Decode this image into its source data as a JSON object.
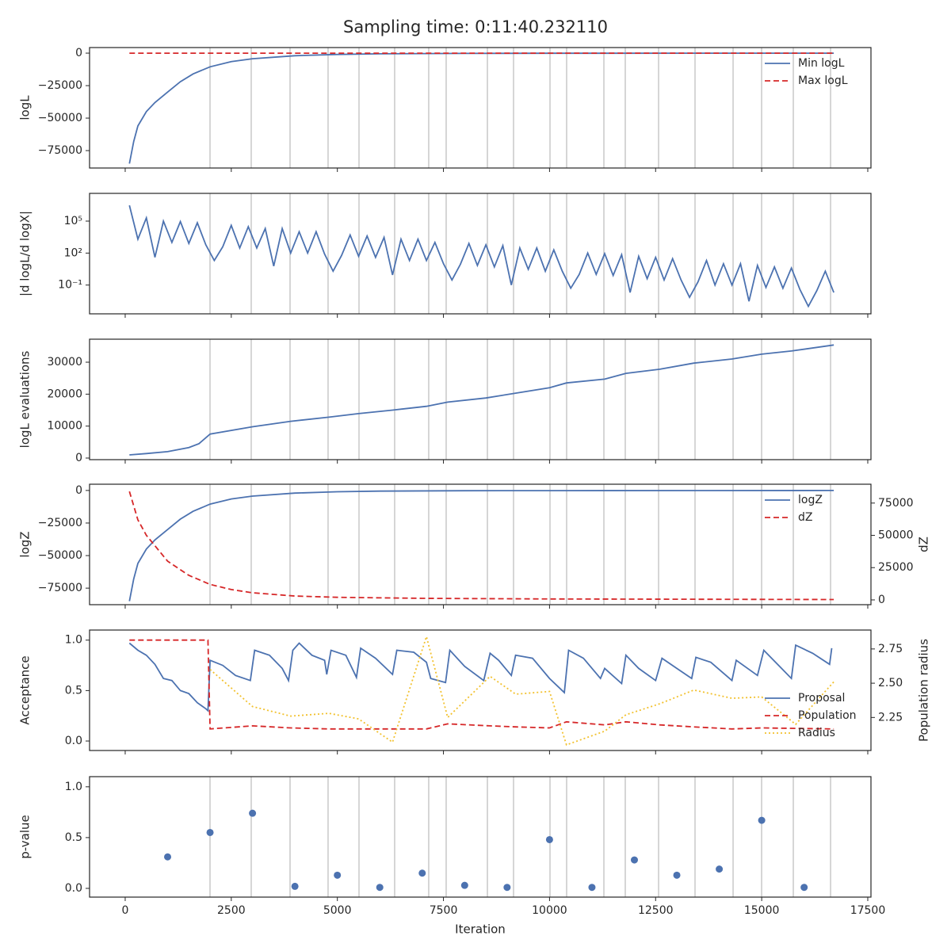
{
  "title": "Sampling time: 0:11:40.232110",
  "xlabel": "Iteration",
  "xlim": [
    -840,
    17575
  ],
  "xticks": [
    0,
    2500,
    5000,
    7500,
    10000,
    12500,
    15000,
    17500
  ],
  "vlines": [
    1999,
    2970,
    3885,
    4781,
    5510,
    6350,
    7153,
    7564,
    8536,
    9152,
    10011,
    10403,
    11281,
    11785,
    12570,
    13429,
    14326,
    14998,
    15745,
    16623
  ],
  "chart_data": [
    {
      "type": "line",
      "ylabel": "logL",
      "ylim": [
        -88400,
        4300
      ],
      "batch_lines": true,
      "legend": "upper right",
      "yticks": [
        0,
        {
          "value": -25000,
          "label": "−25000"
        },
        {
          "value": -50000,
          "label": "−50000"
        },
        {
          "value": -75000,
          "label": "−75000"
        }
      ],
      "series": [
        {
          "name": "Min logL",
          "color": "#4c72b0",
          "linestyle": "solid",
          "x": [
            100,
            200,
            300,
            500,
            700,
            1000,
            1300,
            1600,
            2000,
            2500,
            3000,
            4000,
            5000,
            6000,
            8000,
            10000,
            16700
          ],
          "values": [
            -85000,
            -68000,
            -56000,
            -45000,
            -38000,
            -30000,
            -22000,
            -16000,
            -10500,
            -6500,
            -4300,
            -2000,
            -1000,
            -500,
            -200,
            -100,
            -10
          ]
        },
        {
          "name": "Max logL",
          "color": "#d62728",
          "linestyle": "dashed",
          "x": [
            100,
            16700
          ],
          "values": [
            -5,
            -5
          ]
        }
      ]
    },
    {
      "type": "line",
      "ylabel": "|d logL/d logX|",
      "yscale": "log",
      "ylim": [
        0.0002,
        40000000
      ],
      "batch_lines": true,
      "yticks": [
        {
          "value": 100000,
          "label": "10⁵"
        },
        {
          "value": 100,
          "label": "10²"
        },
        {
          "value": 0.1,
          "label": "10⁻¹"
        }
      ],
      "series": [
        {
          "color": "#4c72b0",
          "linestyle": "solid",
          "x": [
            100,
            300,
            500,
            700,
            900,
            1100,
            1300,
            1500,
            1700,
            1900,
            2100,
            2300,
            2500,
            2700,
            2900,
            3100,
            3300,
            3500,
            3700,
            3900,
            4100,
            4300,
            4500,
            4700,
            4900,
            5100,
            5300,
            5500,
            5700,
            5900,
            6100,
            6300,
            6500,
            6700,
            6900,
            7100,
            7300,
            7500,
            7700,
            7900,
            8100,
            8300,
            8500,
            8700,
            8900,
            9100,
            9300,
            9500,
            9700,
            9900,
            10100,
            10300,
            10500,
            10700,
            10900,
            11100,
            11300,
            11500,
            11700,
            11900,
            12100,
            12300,
            12500,
            12700,
            12900,
            13100,
            13300,
            13500,
            13700,
            13900,
            14100,
            14300,
            14500,
            14700,
            14900,
            15100,
            15300,
            15500,
            15700,
            15900,
            16100,
            16300,
            16500,
            16700
          ],
          "values": [
            3000000.0,
            2000.0,
            200000.0,
            40.0,
            100000.0,
            1000.0,
            90000.0,
            800.0,
            70000.0,
            600.0,
            20.0,
            400.0,
            40000.0,
            300.0,
            30000.0,
            300.0,
            20000.0,
            6,
            20000.0,
            100.0,
            10000.0,
            100.0,
            10000.0,
            80.0,
            2,
            60.0,
            5000.0,
            50.0,
            4000.0,
            40.0,
            3000.0,
            0.9,
            2000.0,
            20.0,
            2000.0,
            20.0,
            1000.0,
            10.0,
            0.3,
            9,
            800.0,
            7,
            600.0,
            5,
            500.0,
            0.1,
            300.0,
            3,
            300.0,
            2,
            200.0,
            2,
            0.05,
            1,
            100.0,
            1,
            90.0,
            0.8,
            70.0,
            0.02,
            50.0,
            0.4,
            40.0,
            0.3,
            30.0,
            0.3,
            0.007,
            0.2,
            20.0,
            0.1,
            10.0,
            0.1,
            10.0,
            0.003,
            7,
            0.06,
            5,
            0.05,
            4,
            0.04,
            0.001,
            0.03,
            2,
            0.02
          ]
        }
      ]
    },
    {
      "type": "line",
      "ylabel": "logL evaluations",
      "ylim": [
        -500,
        37200
      ],
      "batch_lines": true,
      "yticks": [
        0,
        10000,
        20000,
        30000
      ],
      "series": [
        {
          "color": "#4c72b0",
          "linestyle": "solid",
          "x": [
            100,
            500,
            1000,
            1500,
            1740,
            2000,
            3000,
            3900,
            4800,
            5500,
            6300,
            7100,
            7600,
            8500,
            9200,
            10000,
            10400,
            11300,
            11800,
            12600,
            13400,
            14300,
            15000,
            15700,
            16700
          ],
          "values": [
            1000,
            1400,
            2000,
            3300,
            4500,
            7500,
            9800,
            11500,
            12800,
            13900,
            15000,
            16200,
            17500,
            18800,
            20300,
            22000,
            23500,
            24700,
            26500,
            27800,
            29700,
            31000,
            32500,
            33500,
            35400
          ]
        }
      ]
    },
    {
      "type": "line",
      "ylabel": "logZ",
      "y2label": "dZ",
      "ylim": [
        -87700,
        4800
      ],
      "y2lim": [
        -3700,
        89600
      ],
      "batch_lines": true,
      "legend": "upper right",
      "yticks": [
        0,
        {
          "value": -25000,
          "label": "−25000"
        },
        {
          "value": -50000,
          "label": "−50000"
        },
        {
          "value": -75000,
          "label": "−75000"
        }
      ],
      "y2ticks": [
        0,
        25000,
        50000,
        75000
      ],
      "series": [
        {
          "name": "logZ",
          "color": "#4c72b0",
          "linestyle": "solid",
          "x": [
            100,
            200,
            300,
            500,
            700,
            1000,
            1300,
            1600,
            2000,
            2500,
            3000,
            4000,
            5000,
            6000,
            8000,
            10000,
            16700
          ],
          "values": [
            -85000,
            -68000,
            -56000,
            -45000,
            -38000,
            -30000,
            -22000,
            -16000,
            -10500,
            -6500,
            -4300,
            -2000,
            -1000,
            -500,
            -200,
            -100,
            -10
          ]
        },
        {
          "name": "dZ",
          "color": "#d62728",
          "linestyle": "dashed",
          "axis": "y2",
          "x": [
            100,
            300,
            500,
            800,
            1000,
            1500,
            2000,
            2500,
            3000,
            4000,
            5000,
            7000,
            10000,
            16700
          ],
          "values": [
            84000,
            62000,
            50000,
            38000,
            30000,
            19000,
            12000,
            8000,
            5500,
            3000,
            2000,
            1200,
            700,
            300
          ]
        }
      ]
    },
    {
      "type": "line",
      "ylabel": "Acceptance",
      "y2label": "Population radius",
      "ylim": [
        -0.094,
        1.1
      ],
      "y2lim": [
        2.009,
        2.888
      ],
      "batch_lines": false,
      "legend": "lower right",
      "yticks": [
        {
          "value": 0,
          "label": "0.0"
        },
        0.5,
        {
          "value": 1,
          "label": "1.0"
        }
      ],
      "y2ticks": [
        2.25,
        {
          "value": 2.5,
          "label": "2.50"
        },
        2.75
      ],
      "series": [
        {
          "name": "Proposal",
          "color": "#4c72b0",
          "linestyle": "solid",
          "x": [
            100,
            300,
            500,
            700,
            900,
            1100,
            1300,
            1500,
            1700,
            1900,
            1950,
            2000,
            2300,
            2600,
            2950,
            3050,
            3400,
            3700,
            3850,
            3950,
            4100,
            4400,
            4700,
            4750,
            4850,
            5200,
            5450,
            5550,
            5900,
            6300,
            6400,
            6800,
            7100,
            7200,
            7550,
            7650,
            8000,
            8450,
            8600,
            8800,
            9100,
            9200,
            9600,
            10000,
            10350,
            10450,
            10800,
            11200,
            11300,
            11700,
            11800,
            12100,
            12500,
            12650,
            13000,
            13350,
            13450,
            13800,
            14300,
            14400,
            14900,
            15050,
            15400,
            15700,
            15800,
            16200,
            16600,
            16650
          ],
          "values": [
            0.97,
            0.9,
            0.85,
            0.76,
            0.62,
            0.6,
            0.5,
            0.47,
            0.38,
            0.32,
            0.3,
            0.8,
            0.75,
            0.65,
            0.6,
            0.9,
            0.85,
            0.72,
            0.6,
            0.9,
            0.97,
            0.85,
            0.8,
            0.66,
            0.9,
            0.85,
            0.63,
            0.92,
            0.82,
            0.66,
            0.9,
            0.88,
            0.78,
            0.62,
            0.58,
            0.9,
            0.74,
            0.6,
            0.87,
            0.8,
            0.65,
            0.85,
            0.82,
            0.62,
            0.48,
            0.9,
            0.82,
            0.62,
            0.72,
            0.57,
            0.85,
            0.72,
            0.6,
            0.82,
            0.72,
            0.62,
            0.83,
            0.78,
            0.6,
            0.8,
            0.65,
            0.9,
            0.75,
            0.62,
            0.95,
            0.87,
            0.76,
            0.92
          ]
        },
        {
          "name": "Population",
          "color": "#d62728",
          "linestyle": "dashed",
          "x": [
            100,
            1950,
            2000,
            3000,
            3900,
            4800,
            5500,
            6300,
            7100,
            7600,
            8600,
            9200,
            10000,
            10400,
            11300,
            11800,
            12600,
            13400,
            14300,
            15000,
            16700
          ],
          "values": [
            1,
            1,
            0.12,
            0.15,
            0.13,
            0.12,
            0.12,
            0.12,
            0.12,
            0.17,
            0.15,
            0.14,
            0.13,
            0.19,
            0.16,
            0.19,
            0.16,
            0.14,
            0.12,
            0.13,
            0.12
          ]
        },
        {
          "name": "Radius",
          "color": "#f2c12e",
          "linestyle": "dotted",
          "axis": "y2",
          "x": [
            2000,
            3000,
            3900,
            4800,
            5500,
            6300,
            7100,
            7600,
            8600,
            9200,
            10000,
            10400,
            11300,
            11800,
            12600,
            13400,
            14300,
            15000,
            15800,
            16700
          ],
          "values": [
            2.6,
            2.33,
            2.26,
            2.28,
            2.24,
            2.07,
            2.84,
            2.25,
            2.55,
            2.42,
            2.44,
            2.05,
            2.15,
            2.27,
            2.35,
            2.45,
            2.39,
            2.4,
            2.2,
            2.51
          ]
        }
      ]
    },
    {
      "type": "scatter",
      "ylabel": "p-value",
      "ylim": [
        -0.086,
        1.1
      ],
      "batch_lines": true,
      "yticks": [
        {
          "value": 0,
          "label": "0.0"
        },
        0.5,
        {
          "value": 1,
          "label": "1.0"
        }
      ],
      "series": [
        {
          "color": "#4c72b0",
          "x": [
            1000,
            2000,
            3000,
            4000,
            5000,
            6000,
            7000,
            8000,
            9000,
            10000,
            11000,
            12000,
            13000,
            14000,
            15000,
            16000
          ],
          "values": [
            0.31,
            0.55,
            0.74,
            0.02,
            0.13,
            0.01,
            0.15,
            0.03,
            0.01,
            0.48,
            0.01,
            0.28,
            0.13,
            0.19,
            0.67,
            0.01
          ]
        }
      ]
    }
  ]
}
